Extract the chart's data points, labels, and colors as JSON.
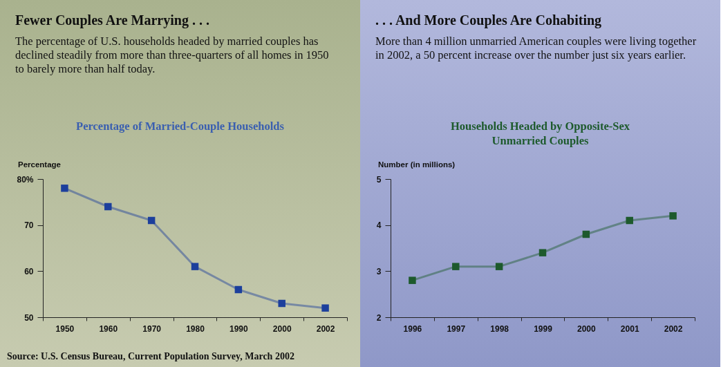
{
  "chart_data": [
    {
      "type": "line",
      "title": "Fewer Couples Are Marrying . . .",
      "subtitle": "The percentage of U.S. households headed by married couples has declined steadily from more than three-quarters of all homes in 1950 to barely more than half today.",
      "ylabel": "Percentage",
      "annotations": [
        "Percentage of Married-Couple Households",
        "Source: U.S. Census Bureau, Current Population Survey, March 2002"
      ],
      "categories": [
        "1950",
        "1960",
        "1970",
        "1980",
        "1990",
        "2000",
        "2002"
      ],
      "series": [
        {
          "color": "#1c3f9c",
          "values": [
            78,
            74,
            71,
            61,
            56,
            53,
            52
          ]
        }
      ],
      "ylim": [
        50,
        80
      ],
      "yticks": [
        50,
        60,
        70,
        {
          "value": 80,
          "label": "80%"
        }
      ],
      "grid": false,
      "legend": false,
      "marker": "square",
      "line_style": "solid"
    },
    {
      "type": "line",
      "title": ". . . And More Couples Are Cohabiting",
      "subtitle": "More than 4 million unmarried American couples were living together in 2002, a 50 percent increase over the number just six years earlier.",
      "ylabel": "Number (in millions)",
      "annotations": [
        "Households Headed by Opposite-Sex\nUnmarried Couples"
      ],
      "categories": [
        "1996",
        "1997",
        "1998",
        "1999",
        "2000",
        "2001",
        "2002"
      ],
      "series": [
        {
          "color": "#1d5a2c",
          "values": [
            2.8,
            3.1,
            3.1,
            3.4,
            3.8,
            4.1,
            4.2
          ]
        }
      ],
      "ylim": [
        2,
        5
      ],
      "yticks": [
        2,
        3,
        4,
        5
      ],
      "grid": false,
      "legend": false,
      "marker": "square",
      "line_style": "solid"
    }
  ]
}
